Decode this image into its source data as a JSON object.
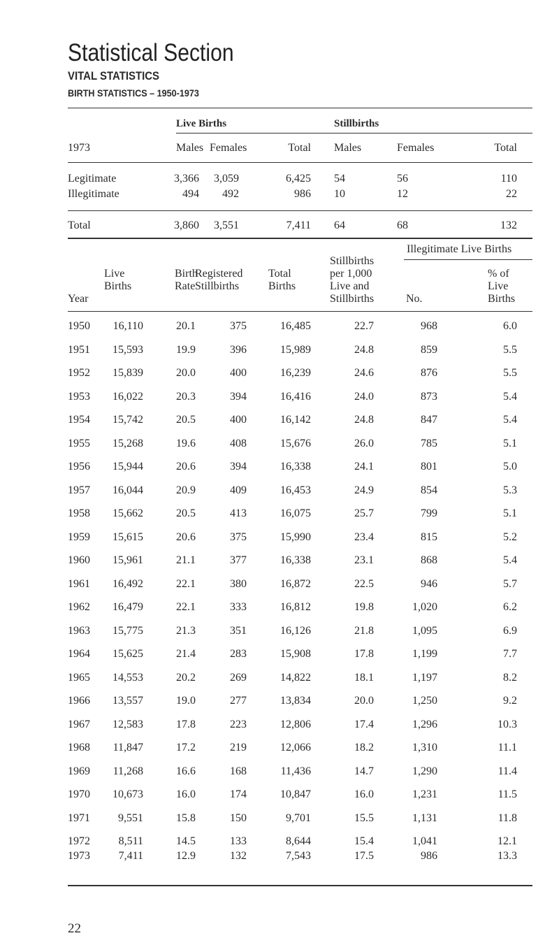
{
  "page": {
    "title": "Statistical Section",
    "section": "VITAL STATISTICS",
    "subsection": "BIRTH STATISTICS – 1950-1973",
    "page_number": "22"
  },
  "table1": {
    "group_headers": {
      "live_births": "Live Births",
      "stillbirths": "Stillbirths"
    },
    "year_label": "1973",
    "columns": [
      "Males",
      "Females",
      "Total",
      "Males",
      "Females",
      "Total"
    ],
    "rows": [
      {
        "label": "Legitimate",
        "values": [
          "3,366",
          "3,059",
          "6,425",
          "54",
          "56",
          "110"
        ]
      },
      {
        "label": "Illegitimate",
        "values": [
          "494",
          "492",
          "986",
          "10",
          "12",
          "22"
        ]
      }
    ],
    "total": {
      "label": "Total",
      "values": [
        "3,860",
        "3,551",
        "7,411",
        "64",
        "68",
        "132"
      ]
    }
  },
  "table2": {
    "group_header": "Illegitimate Live Births",
    "headers": {
      "year": "Year",
      "live_births": [
        "Live",
        "Births"
      ],
      "birth_rate": [
        "Birth",
        "Rate"
      ],
      "registered_stillbirths": [
        "Registered",
        "Stillbirths"
      ],
      "total_births": [
        "Total",
        "Births"
      ],
      "stillbirth_rate": [
        "Stillbirths",
        "per 1,000",
        "Live and",
        "Stillbirths"
      ],
      "illeg_no": "No.",
      "illeg_pct": [
        "% of",
        "Live",
        "Births"
      ]
    },
    "rows": [
      [
        "1950",
        "16,110",
        "20.1",
        "375",
        "16,485",
        "22.7",
        "968",
        "6.0"
      ],
      [
        "1951",
        "15,593",
        "19.9",
        "396",
        "15,989",
        "24.8",
        "859",
        "5.5"
      ],
      [
        "1952",
        "15,839",
        "20.0",
        "400",
        "16,239",
        "24.6",
        "876",
        "5.5"
      ],
      [
        "1953",
        "16,022",
        "20.3",
        "394",
        "16,416",
        "24.0",
        "873",
        "5.4"
      ],
      [
        "1954",
        "15,742",
        "20.5",
        "400",
        "16,142",
        "24.8",
        "847",
        "5.4"
      ],
      [
        "1955",
        "15,268",
        "19.6",
        "408",
        "15,676",
        "26.0",
        "785",
        "5.1"
      ],
      [
        "1956",
        "15,944",
        "20.6",
        "394",
        "16,338",
        "24.1",
        "801",
        "5.0"
      ],
      [
        "1957",
        "16,044",
        "20.9",
        "409",
        "16,453",
        "24.9",
        "854",
        "5.3"
      ],
      [
        "1958",
        "15,662",
        "20.5",
        "413",
        "16,075",
        "25.7",
        "799",
        "5.1"
      ],
      [
        "1959",
        "15,615",
        "20.6",
        "375",
        "15,990",
        "23.4",
        "815",
        "5.2"
      ],
      [
        "1960",
        "15,961",
        "21.1",
        "377",
        "16,338",
        "23.1",
        "868",
        "5.4"
      ],
      [
        "1961",
        "16,492",
        "22.1",
        "380",
        "16,872",
        "22.5",
        "946",
        "5.7"
      ],
      [
        "1962",
        "16,479",
        "22.1",
        "333",
        "16,812",
        "19.8",
        "1,020",
        "6.2"
      ],
      [
        "1963",
        "15,775",
        "21.3",
        "351",
        "16,126",
        "21.8",
        "1,095",
        "6.9"
      ],
      [
        "1964",
        "15,625",
        "21.4",
        "283",
        "15,908",
        "17.8",
        "1,199",
        "7.7"
      ],
      [
        "1965",
        "14,553",
        "20.2",
        "269",
        "14,822",
        "18.1",
        "1,197",
        "8.2"
      ],
      [
        "1966",
        "13,557",
        "19.0",
        "277",
        "13,834",
        "20.0",
        "1,250",
        "9.2"
      ],
      [
        "1967",
        "12,583",
        "17.8",
        "223",
        "12,806",
        "17.4",
        "1,296",
        "10.3"
      ],
      [
        "1968",
        "11,847",
        "17.2",
        "219",
        "12,066",
        "18.2",
        "1,310",
        "11.1"
      ],
      [
        "1969",
        "11,268",
        "16.6",
        "168",
        "11,436",
        "14.7",
        "1,290",
        "11.4"
      ],
      [
        "1970",
        "10,673",
        "16.0",
        "174",
        "10,847",
        "16.0",
        "1,231",
        "11.5"
      ],
      [
        "1971",
        "9,551",
        "15.8",
        "150",
        "9,701",
        "15.5",
        "1,131",
        "11.8"
      ],
      [
        "1972",
        "8,511",
        "14.5",
        "133",
        "8,644",
        "15.4",
        "1,041",
        "12.1"
      ],
      [
        "1973",
        "7,411",
        "12.9",
        "132",
        "7,543",
        "17.5",
        "986",
        "13.3"
      ]
    ]
  }
}
